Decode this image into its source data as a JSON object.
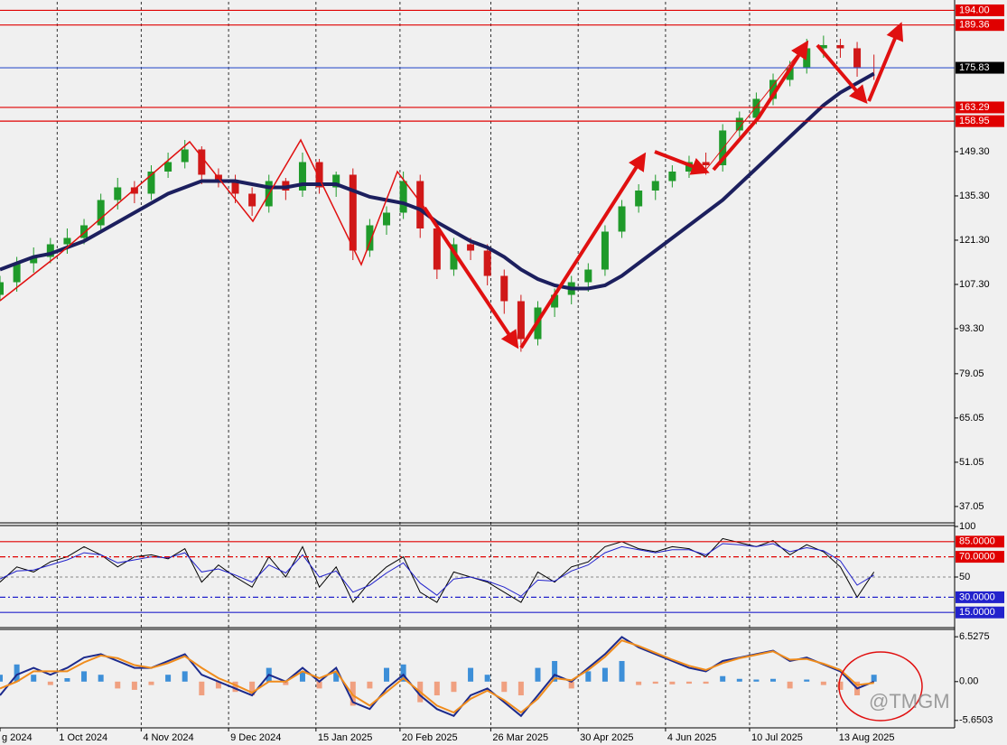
{
  "chart_data": [
    {
      "type": "candlestick",
      "x": [
        0,
        5,
        10,
        15,
        20,
        25,
        30,
        35,
        40,
        45,
        50,
        55,
        60,
        65,
        70,
        75,
        80,
        85,
        90,
        95,
        100,
        105,
        110,
        115,
        120,
        125,
        130,
        135,
        140,
        145,
        150,
        155,
        160,
        165,
        170,
        175,
        180,
        185,
        190,
        195,
        200,
        205,
        210,
        215,
        220,
        225,
        230,
        235,
        240,
        245,
        250,
        255,
        260
      ],
      "open": [
        104,
        108,
        114,
        116,
        120,
        122,
        126,
        134,
        138,
        136,
        143,
        146,
        150,
        142,
        140,
        136,
        132,
        140,
        137,
        146,
        138,
        142,
        118,
        126,
        130,
        140,
        125,
        112,
        120,
        118,
        110,
        102,
        90,
        100,
        104,
        108,
        112,
        124,
        132,
        137,
        140,
        143,
        146,
        145,
        156,
        160,
        166,
        172,
        176,
        182,
        183,
        182,
        176
      ],
      "high": [
        110,
        116,
        119,
        122,
        125,
        128,
        136,
        141,
        140,
        145,
        149,
        153,
        151,
        144,
        142,
        138,
        142,
        141,
        149,
        147,
        143,
        144,
        128,
        132,
        143,
        142,
        127,
        122,
        122,
        120,
        112,
        104,
        102,
        106,
        110,
        114,
        126,
        134,
        139,
        142,
        145,
        148,
        149,
        158,
        162,
        168,
        174,
        178,
        185,
        186,
        185,
        184,
        180
      ],
      "low": [
        102,
        105,
        111,
        114,
        117,
        120,
        124,
        131,
        133,
        134,
        141,
        144,
        139,
        138,
        133,
        129,
        130,
        134,
        135,
        136,
        135,
        115,
        116,
        123,
        128,
        122,
        109,
        110,
        115,
        107,
        98,
        86,
        88,
        97,
        101,
        105,
        110,
        122,
        130,
        134,
        138,
        141,
        142,
        143,
        154,
        158,
        164,
        170,
        174,
        179,
        179,
        173,
        172
      ],
      "close": [
        108,
        114,
        116,
        120,
        122,
        126,
        134,
        138,
        136,
        143,
        146,
        150,
        142,
        140,
        136,
        132,
        140,
        137,
        146,
        138,
        142,
        118,
        126,
        130,
        140,
        125,
        112,
        120,
        118,
        110,
        102,
        90,
        100,
        104,
        108,
        112,
        124,
        132,
        137,
        140,
        143,
        146,
        145,
        156,
        160,
        166,
        172,
        176,
        182,
        183,
        182,
        176,
        175.83
      ],
      "up_color": "#1f9a2a",
      "down_color": "#d01818",
      "ma": {
        "color": "#1c1f5e",
        "values": [
          112,
          114,
          116,
          117,
          119,
          121,
          124,
          127,
          130,
          133,
          136,
          138,
          140,
          140,
          140,
          139,
          138,
          138,
          139,
          139,
          139,
          137,
          135,
          134,
          133,
          131,
          127,
          124,
          121,
          119,
          116,
          112,
          109,
          107,
          106,
          106,
          107,
          110,
          114,
          118,
          122,
          126,
          130,
          134,
          139,
          144,
          149,
          154,
          159,
          164,
          168,
          171,
          174
        ]
      },
      "xlim": [
        0,
        284
      ],
      "xticks": [
        {
          "value": 0,
          "label": "g 2024"
        },
        {
          "value": 17,
          "label": "1 Oct 2024"
        },
        {
          "value": 42,
          "label": "4 Nov 2024"
        },
        {
          "value": 68,
          "label": "9 Dec 2024"
        },
        {
          "value": 94,
          "label": "15 Jan 2025"
        },
        {
          "value": 119,
          "label": "20 Feb 2025"
        },
        {
          "value": 146,
          "label": "26 Mar 2025"
        },
        {
          "value": 172,
          "label": "30 Apr 2025"
        },
        {
          "value": 198,
          "label": "4 Jun 2025"
        },
        {
          "value": 223,
          "label": "10 Jul 2025"
        },
        {
          "value": 249,
          "label": "13 Aug 2025"
        }
      ],
      "ylim": [
        32.16,
        196.7
      ],
      "yticks": [
        37.05,
        51.05,
        65.05,
        79.05,
        {
          "value": 93.3,
          "label": "93.30"
        },
        {
          "value": 107.3,
          "label": "107.30"
        },
        {
          "value": 121.3,
          "label": "121.30"
        },
        {
          "value": 135.3,
          "label": "135.30"
        },
        {
          "value": 149.3,
          "label": "149.30"
        }
      ],
      "levels": [
        {
          "value": 194,
          "label": "194.00",
          "color": "#e00000",
          "label_color": "#e00000"
        },
        {
          "value": 189.36,
          "label": "189.36",
          "color": "#e00000",
          "label_color": "#e00000"
        },
        {
          "value": 175.83,
          "label": "175.83",
          "color": "#3355cc",
          "label_color": "#000000"
        },
        {
          "value": 163.29,
          "label": "163.29",
          "color": "#e00000",
          "label_color": "#e00000"
        },
        {
          "value": 158.95,
          "label": "158.95",
          "color": "#e00000",
          "label_color": "#e00000"
        }
      ],
      "watermark": "@TMGM"
    },
    {
      "type": "line",
      "ylim": [
        0,
        100
      ],
      "yticks": [
        100,
        50
      ],
      "levels": [
        {
          "value": 85,
          "label": "85.0000",
          "color": "#e00000",
          "label_color": "#e00000"
        },
        {
          "value": 70,
          "label": "70.0000",
          "color": "#e00000",
          "label_color": "#e00000"
        },
        {
          "value": 30,
          "label": "30.0000",
          "color": "#2222cc",
          "label_color": "#2222cc"
        },
        {
          "value": 15,
          "label": "15.0000",
          "color": "#2222cc",
          "label_color": "#2222cc"
        }
      ],
      "series": [
        {
          "color": "#000000",
          "values": [
            45,
            60,
            55,
            65,
            70,
            80,
            72,
            60,
            70,
            72,
            68,
            78,
            45,
            62,
            50,
            40,
            70,
            50,
            80,
            40,
            60,
            25,
            45,
            60,
            70,
            35,
            25,
            55,
            50,
            45,
            35,
            25,
            55,
            45,
            60,
            65,
            80,
            85,
            78,
            75,
            80,
            78,
            70,
            88,
            84,
            80,
            86,
            72,
            82,
            75,
            60,
            30,
            55
          ]
        },
        {
          "color": "#2222cc",
          "values": [
            48,
            56,
            57,
            62,
            67,
            74,
            72,
            64,
            67,
            70,
            69,
            74,
            55,
            58,
            52,
            45,
            62,
            54,
            72,
            50,
            56,
            35,
            42,
            54,
            64,
            44,
            32,
            48,
            50,
            46,
            40,
            31,
            47,
            46,
            56,
            62,
            74,
            80,
            77,
            74,
            77,
            77,
            72,
            83,
            82,
            80,
            83,
            75,
            79,
            76,
            66,
            42,
            52
          ]
        }
      ]
    },
    {
      "type": "macd",
      "ylim": [
        -6.6,
        7.6
      ],
      "yticks": [
        6.5275,
        {
          "value": 0,
          "label": "0.00"
        },
        -5.6503
      ],
      "histogram": {
        "up_color": "#3d8fd8",
        "down_color": "#f0a080",
        "values": [
          1,
          2.5,
          1,
          -0.5,
          0.5,
          1.5,
          1,
          -1,
          -1.2,
          -0.5,
          1,
          1.5,
          -2,
          -1,
          -1.5,
          -2,
          2,
          -0.5,
          1.5,
          -1,
          1.5,
          -3.5,
          -1,
          2,
          2.5,
          -3,
          -2,
          -1.5,
          2,
          1,
          -1.5,
          -2,
          2,
          3,
          -1,
          1.5,
          2,
          3,
          -0.5,
          -0.3,
          -0.4,
          -0.3,
          -0.3,
          0.8,
          0.4,
          0.3,
          0.4,
          -1,
          0.3,
          -0.5,
          -1.2,
          -2,
          1
        ]
      },
      "series": [
        {
          "color": "#1c2a8c",
          "values": [
            -2,
            1,
            2,
            1,
            2,
            3.5,
            4,
            3,
            2,
            2,
            3,
            4,
            1,
            0,
            -1,
            -2,
            1,
            0,
            2,
            0,
            2,
            -3,
            -4,
            -1,
            1,
            -2,
            -4,
            -5,
            -2,
            -1,
            -3,
            -5,
            -2,
            1,
            0,
            2,
            4,
            6.5,
            5,
            4,
            3,
            2,
            1.5,
            3,
            3.5,
            4,
            4.5,
            3,
            3.5,
            2.5,
            1.5,
            -1,
            0
          ]
        },
        {
          "color": "#f08c1c",
          "values": [
            -1,
            0,
            1.5,
            1.5,
            1.5,
            2.8,
            3.8,
            3.4,
            2.4,
            2,
            2.7,
            3.7,
            2,
            0.5,
            -0.5,
            -1.6,
            0,
            0,
            1.5,
            0.5,
            1.5,
            -2,
            -3.5,
            -1.5,
            0.5,
            -1.5,
            -3.5,
            -4.5,
            -2.5,
            -1.3,
            -2.7,
            -4.5,
            -2.5,
            0.5,
            0.2,
            1.7,
            3.6,
            6,
            5.2,
            4.2,
            3.2,
            2.3,
            1.7,
            2.7,
            3.4,
            3.9,
            4.4,
            3.2,
            3.3,
            2.6,
            1.7,
            -0.5,
            -0.2
          ]
        }
      ]
    }
  ]
}
